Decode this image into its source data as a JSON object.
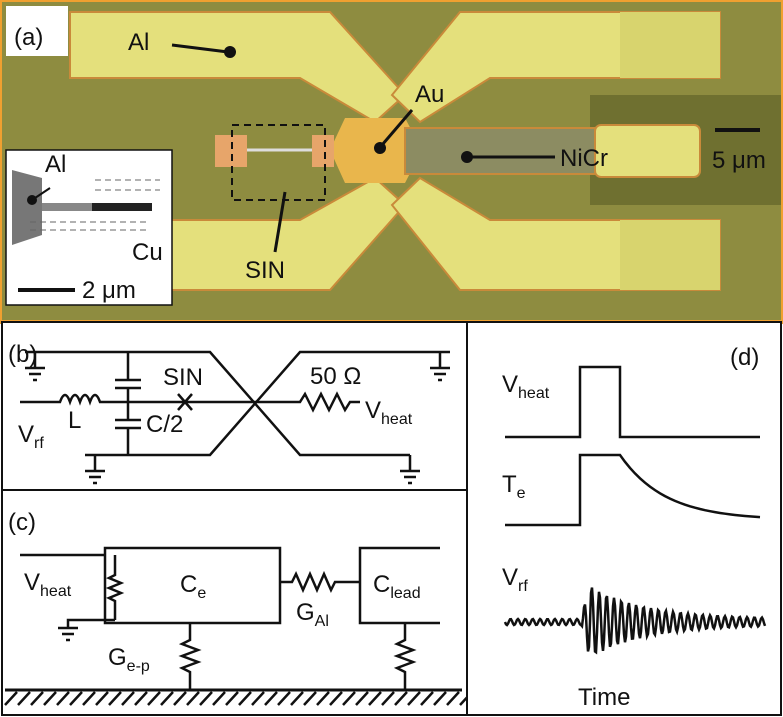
{
  "a": {
    "label": "(a)",
    "al": "Al",
    "au": "Au",
    "nicr": "NiCr",
    "sin": "SIN",
    "scale": "5 μm",
    "inset": {
      "al": "Al",
      "cu": "Cu",
      "scale": "2 μm"
    }
  },
  "b": {
    "label": "(b)",
    "sin": "SIN",
    "resistor": "50 Ω",
    "vheat": {
      "base": "V",
      "sub": "heat"
    },
    "vrf": {
      "base": "V",
      "sub": "rf"
    },
    "inductor": "L",
    "capacitor": "C/2"
  },
  "c": {
    "label": "(c)",
    "vheat": {
      "base": "V",
      "sub": "heat"
    },
    "ce": {
      "base": "C",
      "sub": "e"
    },
    "gal": {
      "base": "G",
      "sub": "Al"
    },
    "clead": {
      "base": "C",
      "sub": "lead"
    },
    "gep": {
      "base": "G",
      "sub": "e-p"
    }
  },
  "d": {
    "label": "(d)",
    "vheat": {
      "base": "V",
      "sub": "heat"
    },
    "te": {
      "base": "T",
      "sub": "e"
    },
    "vrf": {
      "base": "V",
      "sub": "rf"
    },
    "time": "Time"
  }
}
